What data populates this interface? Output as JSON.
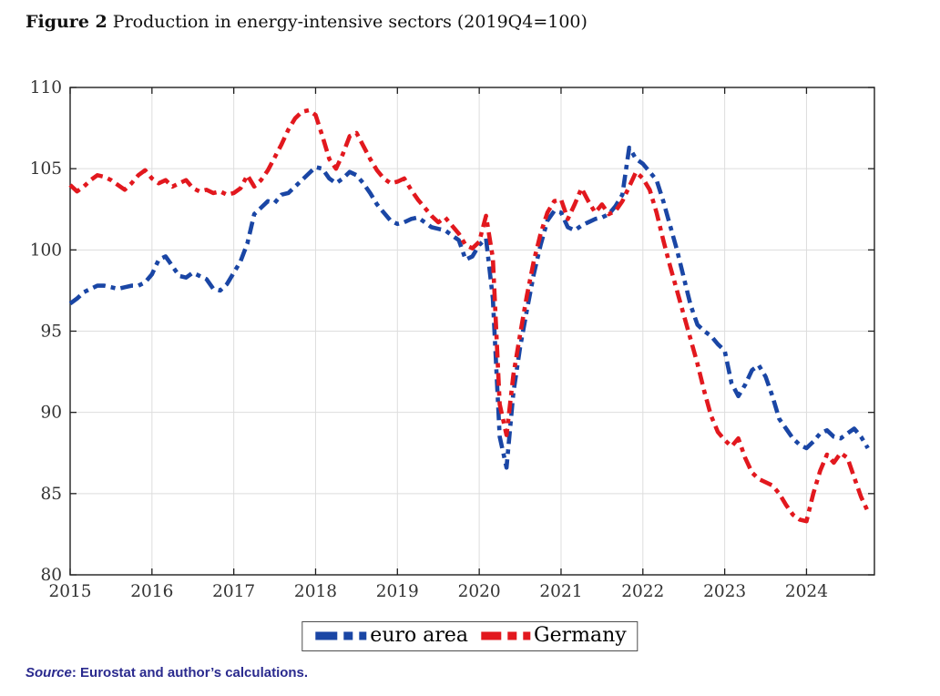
{
  "title": {
    "label": "Figure 2",
    "text": " Production in energy-intensive sectors (2019Q4=100)"
  },
  "source": {
    "prefix": "Source",
    "text": ": Eurostat and author’s calculations."
  },
  "legend": {
    "items": [
      {
        "label": "euro area",
        "color": "#1a46a5"
      },
      {
        "label": "Germany",
        "color": "#e2181e"
      }
    ]
  },
  "colors": {
    "euro_area": "#1a46a5",
    "germany": "#e2181e",
    "grid": "#dddddd",
    "axis": "#1f1f1f",
    "tick_text": "#333333",
    "source_text": "#2a2a8e"
  },
  "chart_data": {
    "type": "line",
    "title": "Production in energy-intensive sectors (2019Q4=100)",
    "xlabel": "",
    "ylabel": "",
    "xlim": [
      2015,
      2024.83
    ],
    "ylim": [
      80,
      110
    ],
    "x_ticks": [
      2015,
      2016,
      2017,
      2018,
      2019,
      2020,
      2021,
      2022,
      2023,
      2024
    ],
    "y_ticks": [
      80,
      85,
      90,
      95,
      100,
      105,
      110
    ],
    "grid": true,
    "legend_position": "below",
    "x_start_year": 2015,
    "x_step": 0.0833333,
    "series": [
      {
        "name": "euro area",
        "color": "#1a46a5",
        "dash": "dash-dot",
        "values": [
          96.7,
          97.0,
          97.4,
          97.6,
          97.8,
          97.8,
          97.7,
          97.6,
          97.7,
          97.8,
          97.8,
          98.0,
          98.5,
          99.4,
          99.6,
          99.0,
          98.4,
          98.3,
          98.6,
          98.4,
          98.2,
          97.6,
          97.5,
          97.9,
          98.6,
          99.3,
          100.4,
          102.2,
          102.6,
          103.0,
          102.9,
          103.4,
          103.5,
          103.9,
          104.3,
          104.7,
          105.1,
          105.0,
          104.4,
          104.1,
          104.4,
          104.8,
          104.6,
          104.1,
          103.5,
          102.8,
          102.3,
          101.8,
          101.6,
          101.7,
          101.9,
          102.0,
          101.7,
          101.4,
          101.3,
          101.2,
          100.9,
          100.6,
          99.4,
          99.6,
          100.3,
          100.7,
          97.0,
          88.5,
          86.6,
          91.2,
          94.0,
          96.3,
          98.5,
          100.3,
          101.8,
          102.4,
          102.3,
          101.4,
          101.2,
          101.5,
          101.7,
          101.9,
          102.0,
          102.2,
          102.7,
          103.4,
          106.3,
          105.6,
          105.3,
          104.8,
          104.3,
          103.0,
          101.5,
          100.0,
          98.3,
          96.6,
          95.4,
          95.0,
          94.7,
          94.2,
          93.8,
          91.8,
          91.0,
          91.7,
          92.6,
          92.9,
          92.2,
          91.0,
          89.6,
          89.0,
          88.4,
          88.0,
          87.8,
          88.2,
          88.7,
          88.9,
          88.5,
          88.4,
          88.7,
          89.0,
          88.5,
          87.8
        ]
      },
      {
        "name": "Germany",
        "color": "#e2181e",
        "dash": "dash-dot",
        "values": [
          104.0,
          103.6,
          103.9,
          104.3,
          104.6,
          104.5,
          104.3,
          104.0,
          103.7,
          104.1,
          104.6,
          104.9,
          104.4,
          104.1,
          104.3,
          103.9,
          104.1,
          104.3,
          103.8,
          103.6,
          103.7,
          103.5,
          103.6,
          103.4,
          103.5,
          103.8,
          104.6,
          103.9,
          104.3,
          104.9,
          105.7,
          106.5,
          107.4,
          108.1,
          108.5,
          108.6,
          108.3,
          107.0,
          105.6,
          105.0,
          105.9,
          107.0,
          107.2,
          106.4,
          105.6,
          104.9,
          104.4,
          104.1,
          104.2,
          104.4,
          103.7,
          103.1,
          102.6,
          102.1,
          101.7,
          102.0,
          101.5,
          101.0,
          100.3,
          100.1,
          100.5,
          102.1,
          99.5,
          90.5,
          88.6,
          92.3,
          94.8,
          97.2,
          99.3,
          101.0,
          102.3,
          103.0,
          103.1,
          101.9,
          102.8,
          103.8,
          103.0,
          102.3,
          102.8,
          102.2,
          102.4,
          103.0,
          103.9,
          104.8,
          104.4,
          103.7,
          102.3,
          100.6,
          99.0,
          97.5,
          96.0,
          94.5,
          93.0,
          91.3,
          89.8,
          88.8,
          88.3,
          87.9,
          88.4,
          87.2,
          86.3,
          85.9,
          85.7,
          85.5,
          85.0,
          84.3,
          83.7,
          83.4,
          83.3,
          85.0,
          86.4,
          87.4,
          86.9,
          87.5,
          87.2,
          86.0,
          84.8,
          83.9
        ]
      }
    ]
  }
}
